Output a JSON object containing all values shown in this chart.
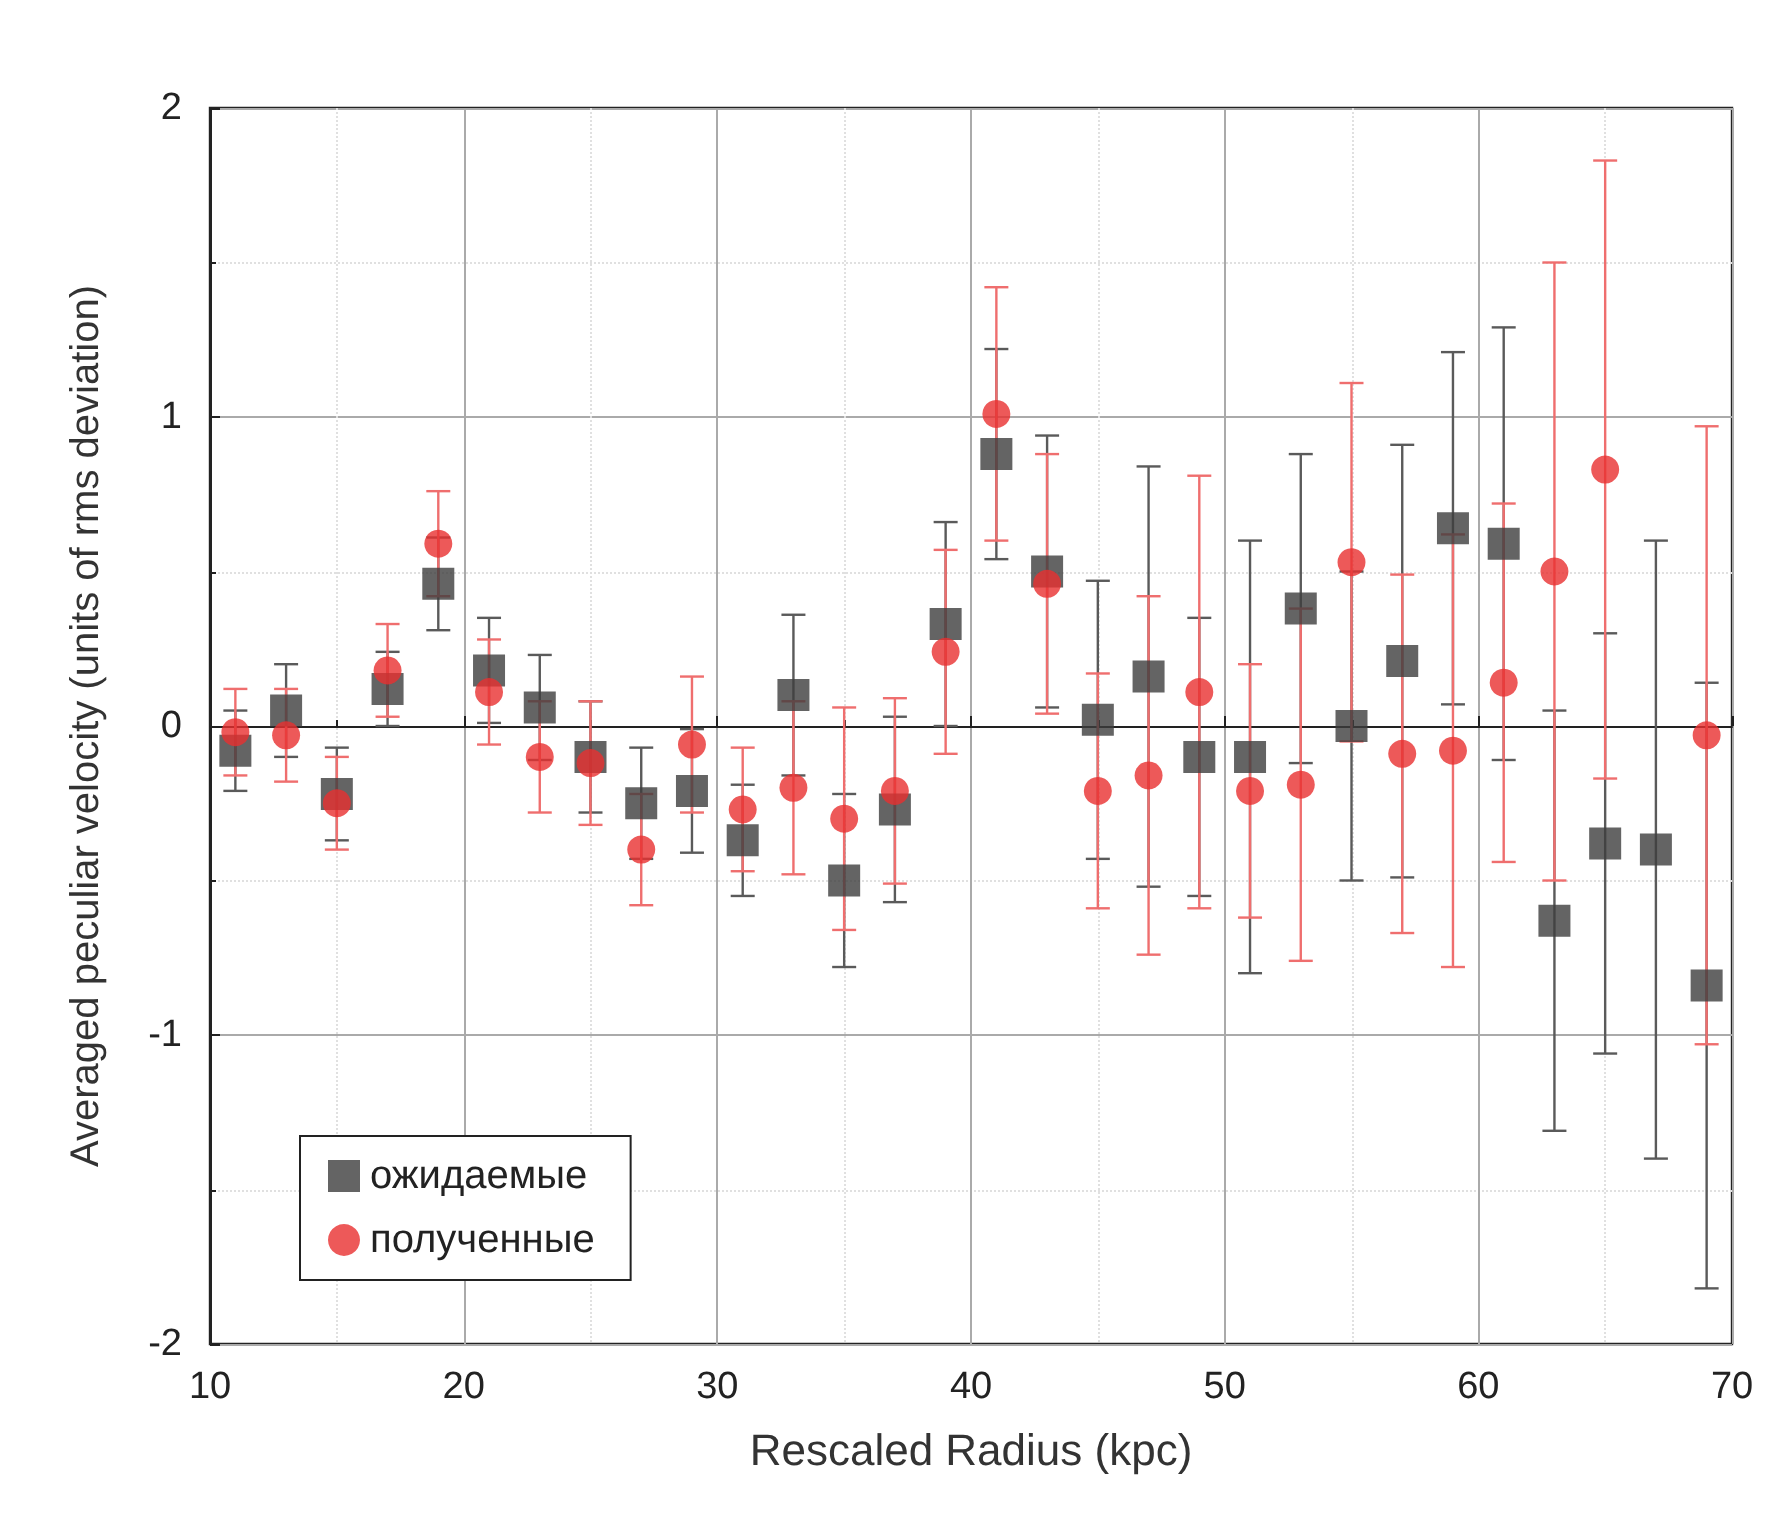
{
  "chart_data": {
    "type": "scatter",
    "xlabel": "Rescaled Radius (kpc)",
    "ylabel": "Averaged peculiar velocity (units of rms deviation)",
    "xlim": [
      10,
      70
    ],
    "xticks": [
      10,
      20,
      30,
      40,
      50,
      60,
      70
    ],
    "ylim": [
      -2,
      2
    ],
    "yticks": [
      -2,
      -1,
      0,
      1,
      2
    ],
    "grid": true,
    "legend": "bottom left",
    "series": [
      {
        "name": "ожидаемые",
        "color": "#3d3d3d",
        "marker": "square",
        "x": [
          11,
          13,
          15,
          17,
          19,
          21,
          23,
          25,
          27,
          29,
          31,
          33,
          35,
          37,
          39,
          41,
          43,
          45,
          47,
          49,
          51,
          53,
          55,
          57,
          59,
          61,
          63,
          65,
          67,
          69
        ],
        "values": [
          -0.08,
          0.05,
          -0.22,
          0.12,
          0.46,
          0.18,
          0.06,
          -0.1,
          -0.25,
          -0.21,
          -0.37,
          0.1,
          -0.5,
          -0.27,
          0.33,
          0.88,
          0.5,
          0.02,
          0.16,
          -0.1,
          -0.1,
          0.38,
          0.0,
          0.21,
          0.64,
          0.59,
          -0.63,
          -0.38,
          -0.4,
          -0.84
        ],
        "errors": [
          0.13,
          0.15,
          0.15,
          0.12,
          0.15,
          0.17,
          0.17,
          0.18,
          0.18,
          0.2,
          0.18,
          0.26,
          0.28,
          0.3,
          0.33,
          0.34,
          0.44,
          0.45,
          0.68,
          0.45,
          0.7,
          0.5,
          0.5,
          0.7,
          0.57,
          0.7,
          0.68,
          0.68,
          1.0,
          0.98
        ]
      },
      {
        "name": "полученные",
        "color": "#e83030",
        "marker": "circle",
        "x": [
          11,
          13,
          15,
          17,
          19,
          21,
          23,
          25,
          27,
          29,
          31,
          33,
          35,
          37,
          39,
          41,
          43,
          45,
          47,
          49,
          51,
          53,
          55,
          57,
          59,
          61,
          63,
          65,
          69
        ],
        "values": [
          -0.02,
          -0.03,
          -0.25,
          0.18,
          0.59,
          0.11,
          -0.1,
          -0.12,
          -0.4,
          -0.06,
          -0.27,
          -0.2,
          -0.3,
          -0.21,
          0.24,
          1.01,
          0.46,
          -0.21,
          -0.16,
          0.11,
          -0.21,
          -0.19,
          0.53,
          -0.09,
          -0.08,
          0.14,
          0.5,
          0.83,
          -0.03
        ],
        "errors": [
          0.14,
          0.15,
          0.15,
          0.15,
          0.17,
          0.17,
          0.18,
          0.2,
          0.18,
          0.22,
          0.2,
          0.28,
          0.36,
          0.3,
          0.33,
          0.41,
          0.42,
          0.38,
          0.58,
          0.7,
          0.41,
          0.57,
          0.58,
          0.58,
          0.7,
          0.58,
          1.0,
          1.0,
          1.0
        ]
      }
    ]
  }
}
